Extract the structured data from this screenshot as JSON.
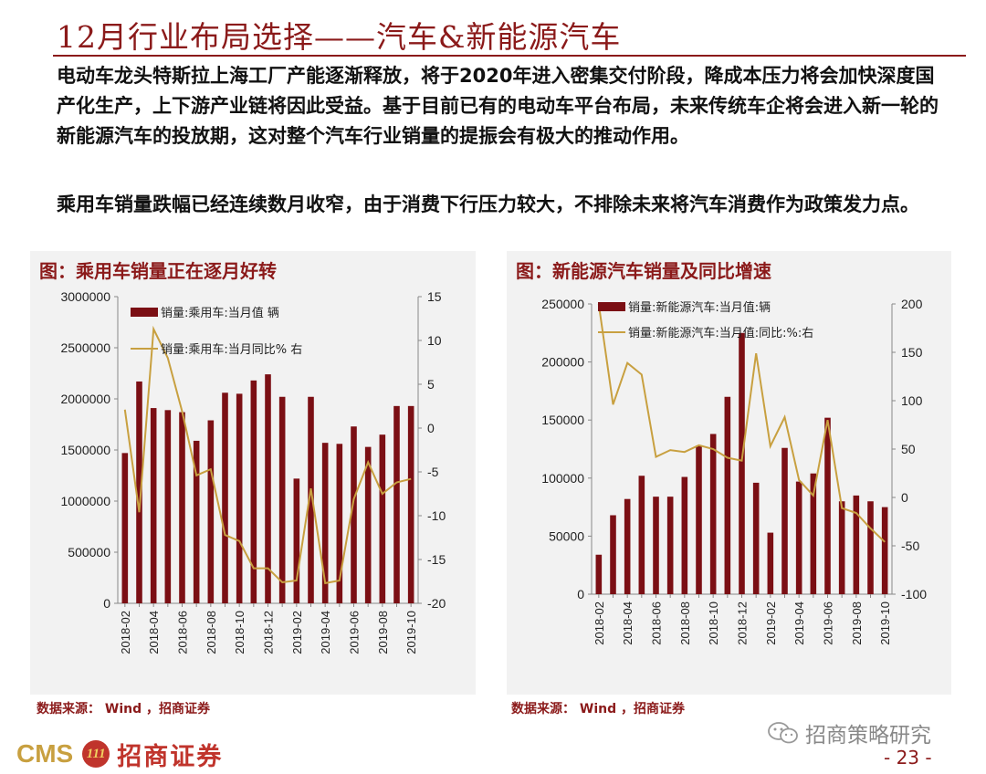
{
  "page": {
    "title": "12月行业布局选择——汽车&新能源汽车",
    "para1": "电动车龙头特斯拉上海工厂产能逐渐释放，将于2020年进入密集交付阶段，降成本压力将会加快深度国产化生产，上下游产业链将因此受益。基于目前已有的电动车平台布局，未来传统车企将会进入新一轮的新能源汽车的投放期，这对整个汽车行业销量的提振会有极大的推动作用。",
    "para2": "乘用车销量跌幅已经连续数月收窄，由于消费下行压力较大，不排除未来将汽车消费作为政策发力点。",
    "source_left": "数据来源： Wind ，招商证券",
    "source_right": "数据来源： Wind ，招商证券",
    "logo_text": "CMS",
    "logo_badge": "111",
    "logo_name": "招商证券",
    "watermark": "招商策略研究",
    "page_number": "- 23 -",
    "colors": {
      "bar": "#7b0f14",
      "line": "#c8a040",
      "accent": "#8b1a1a"
    }
  },
  "chart_data": [
    {
      "type": "bar",
      "title": "图：乘用车销量正在逐月好转",
      "categories": [
        "2018-02",
        "2018-03",
        "2018-04",
        "2018-05",
        "2018-06",
        "2018-07",
        "2018-08",
        "2018-09",
        "2018-10",
        "2018-11",
        "2018-12",
        "2019-01",
        "2019-02",
        "2019-03",
        "2019-04",
        "2019-05",
        "2019-06",
        "2019-07",
        "2019-08",
        "2019-09",
        "2019-10"
      ],
      "x_tick_labels": [
        "2018-02",
        "2018-04",
        "2018-06",
        "2018-08",
        "2018-10",
        "2018-12",
        "2019-02",
        "2019-04",
        "2019-06",
        "2019-08",
        "2019-10"
      ],
      "series": [
        {
          "name": "销量:乘用车:当月值 辆",
          "axis": "left",
          "type": "bar",
          "values": [
            1470000,
            2170000,
            1910000,
            1890000,
            1870000,
            1590000,
            1790000,
            2060000,
            2050000,
            2180000,
            2240000,
            2020000,
            1220000,
            2020000,
            1570000,
            1560000,
            1730000,
            1530000,
            1650000,
            1930000,
            1930000
          ]
        },
        {
          "name": "销量:乘用车:当月同比% 右",
          "axis": "right",
          "type": "line",
          "values": [
            2.1,
            -9.6,
            11.3,
            8.0,
            1.9,
            -5.4,
            -4.7,
            -12.2,
            -12.9,
            -16.0,
            -16.0,
            -17.6,
            -17.4,
            -6.9,
            -17.7,
            -17.4,
            -8.1,
            -3.9,
            -7.5,
            -6.2,
            -5.8
          ]
        }
      ],
      "ylim": [
        0,
        3000000
      ],
      "y_ticks": [
        0,
        500000,
        1000000,
        1500000,
        2000000,
        2500000,
        3000000
      ],
      "y2lim": [
        -20,
        15
      ],
      "y2_ticks": [
        -20,
        -15,
        -10,
        -5,
        0,
        5,
        10,
        15
      ],
      "legend_position": "top-left"
    },
    {
      "type": "bar",
      "title": "图：新能源汽车销量及同比增速",
      "categories": [
        "2018-02",
        "2018-03",
        "2018-04",
        "2018-05",
        "2018-06",
        "2018-07",
        "2018-08",
        "2018-09",
        "2018-10",
        "2018-11",
        "2018-12",
        "2019-01",
        "2019-02",
        "2019-03",
        "2019-04",
        "2019-05",
        "2019-06",
        "2019-07",
        "2019-08",
        "2019-09",
        "2019-10"
      ],
      "x_tick_labels": [
        "2018-02",
        "2018-04",
        "2018-06",
        "2018-08",
        "2018-10",
        "2018-12",
        "2019-02",
        "2019-04",
        "2019-06",
        "2019-08",
        "2019-10"
      ],
      "series": [
        {
          "name": "销量:新能源汽车:当月值:辆",
          "axis": "left",
          "type": "bar",
          "values": [
            34000,
            68000,
            82000,
            102000,
            84000,
            84000,
            101000,
            128000,
            138000,
            170000,
            225000,
            96000,
            53000,
            126000,
            97000,
            104000,
            152000,
            80000,
            85000,
            80000,
            75000
          ]
        },
        {
          "name": "销量:新能源汽车:当月值:同比:%:右",
          "axis": "right",
          "type": "line",
          "values": [
            200,
            96,
            139,
            127,
            42,
            49,
            47,
            54,
            50,
            41,
            38,
            149,
            53,
            83,
            18,
            2,
            80,
            -11,
            -16,
            -32,
            -46
          ]
        }
      ],
      "ylim": [
        0,
        250000
      ],
      "y_ticks": [
        0,
        50000,
        100000,
        150000,
        200000,
        250000
      ],
      "y2lim": [
        -100,
        200
      ],
      "y2_ticks": [
        -100,
        -50,
        0,
        50,
        100,
        150,
        200
      ],
      "legend_position": "top-left"
    }
  ]
}
